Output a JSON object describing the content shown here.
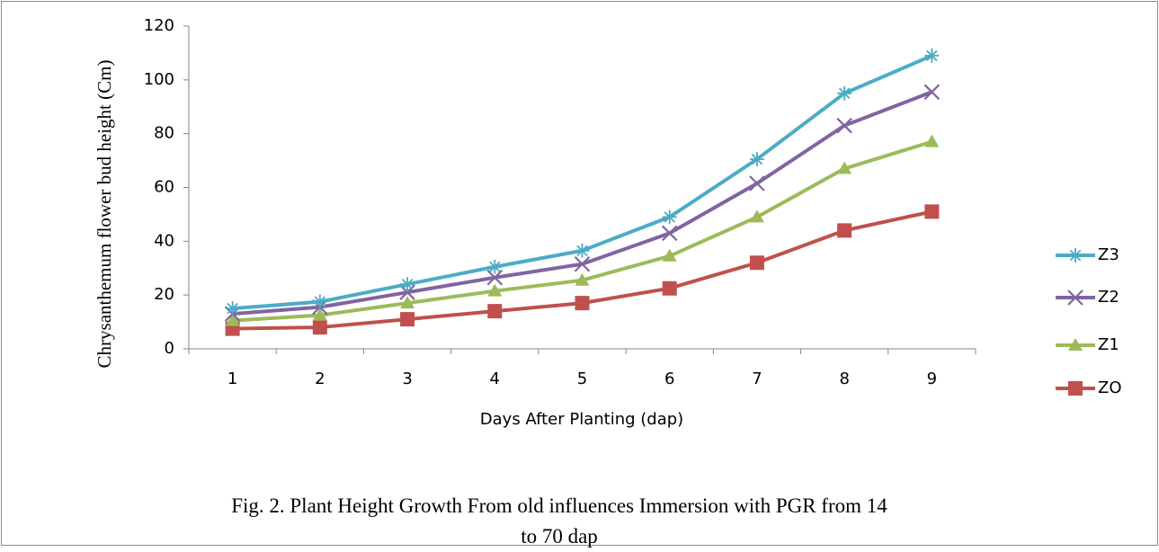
{
  "chart_data": {
    "type": "line",
    "caption": "Fig. 2. Plant Height Growth From old influences Immersion with PGR from 14 to 70 dap",
    "x_label": "Days After Planting (dap)",
    "y_label": "Chrysanthemum flower bud height (Cm)",
    "categories": [
      "1",
      "2",
      "3",
      "4",
      "5",
      "6",
      "7",
      "8",
      "9"
    ],
    "ylim": [
      0,
      120
    ],
    "yticks": [
      0,
      20,
      40,
      60,
      80,
      100,
      120
    ],
    "series": [
      {
        "name": "Z3",
        "color": "#4bacc6",
        "marker": "star",
        "values": [
          15,
          17.5,
          24,
          30.5,
          36.5,
          49,
          70.5,
          95,
          109
        ]
      },
      {
        "name": "Z2",
        "color": "#8064a2",
        "marker": "x",
        "values": [
          13,
          15.5,
          21,
          26.5,
          31.5,
          43,
          61.5,
          83,
          95.5
        ]
      },
      {
        "name": "Z1",
        "color": "#9bbb59",
        "marker": "triangle",
        "values": [
          10.5,
          12.5,
          17,
          21.5,
          25.5,
          34.5,
          49,
          67,
          77
        ]
      },
      {
        "name": "ZO",
        "color": "#c0504d",
        "marker": "square",
        "values": [
          7.5,
          8,
          11,
          14,
          17,
          22.5,
          32,
          44,
          51
        ]
      }
    ]
  }
}
